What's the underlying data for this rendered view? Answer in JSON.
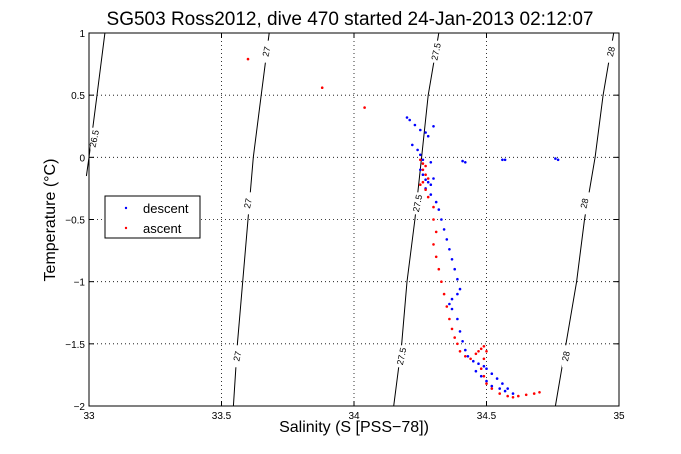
{
  "chart_data": {
    "type": "scatter",
    "title": "SG503 Ross2012, dive 470 started 24-Jan-2013 02:12:07",
    "xlabel": "Salinity (S [PSS−78])",
    "ylabel": "Temperature (°C)",
    "xlim": [
      33,
      35
    ],
    "ylim": [
      -2,
      1
    ],
    "xticks": [
      33,
      33.5,
      34,
      34.5,
      35
    ],
    "yticks": [
      -2,
      -1.5,
      -1,
      -0.5,
      0,
      0.5,
      1
    ],
    "xtick_labels": [
      "33",
      "33.5",
      "34",
      "34.5",
      "35"
    ],
    "ytick_labels": [
      "−2",
      "−1.5",
      "−1",
      "−0.5",
      "0",
      "0.5",
      "1"
    ],
    "grid": "dotted",
    "legend_position": "left-middle",
    "colors": {
      "descent": "#0000ff",
      "ascent": "#ff0000",
      "contour": "#000000"
    },
    "density_contours": [
      {
        "label": "26.5",
        "points": [
          [
            33.06,
            1.0
          ],
          [
            33.03,
            0.5
          ],
          [
            33.0,
            0.0
          ],
          [
            32.99,
            -0.15
          ]
        ],
        "label_positions": [
          [
            33.02,
            0.15
          ]
        ]
      },
      {
        "label": "27",
        "points": [
          [
            33.68,
            1.0
          ],
          [
            33.65,
            0.5
          ],
          [
            33.62,
            0.0
          ],
          [
            33.6,
            -0.5
          ],
          [
            33.58,
            -1.0
          ],
          [
            33.56,
            -1.5
          ],
          [
            33.545,
            -2.0
          ]
        ],
        "label_positions": [
          [
            33.67,
            0.85
          ],
          [
            33.6,
            -0.37
          ],
          [
            33.56,
            -1.6
          ]
        ]
      },
      {
        "label": "27.5",
        "points": [
          [
            34.32,
            1.0
          ],
          [
            34.28,
            0.5
          ],
          [
            34.255,
            0.0
          ],
          [
            34.23,
            -0.5
          ],
          [
            34.2,
            -1.0
          ],
          [
            34.18,
            -1.5
          ],
          [
            34.15,
            -2.0
          ]
        ],
        "label_positions": [
          [
            34.31,
            0.85
          ],
          [
            34.24,
            -0.37
          ],
          [
            34.18,
            -1.6
          ]
        ]
      },
      {
        "label": "28",
        "points": [
          [
            34.98,
            1.0
          ],
          [
            34.94,
            0.5
          ],
          [
            34.91,
            0.0
          ],
          [
            34.87,
            -0.5
          ],
          [
            34.84,
            -1.0
          ],
          [
            34.8,
            -1.5
          ],
          [
            34.76,
            -2.0
          ]
        ],
        "label_positions": [
          [
            34.97,
            0.85
          ],
          [
            34.87,
            -0.37
          ],
          [
            34.8,
            -1.6
          ]
        ]
      }
    ],
    "series": [
      {
        "name": "descent",
        "marker": "dot",
        "points": [
          [
            34.2,
            0.32
          ],
          [
            34.21,
            0.3
          ],
          [
            34.23,
            0.26
          ],
          [
            34.25,
            0.22
          ],
          [
            34.27,
            0.2
          ],
          [
            34.28,
            0.17
          ],
          [
            34.3,
            0.25
          ],
          [
            34.22,
            0.1
          ],
          [
            34.24,
            0.06
          ],
          [
            34.25,
            0.02
          ],
          [
            34.26,
            -0.02
          ],
          [
            34.29,
            -0.04
          ],
          [
            34.41,
            -0.03
          ],
          [
            34.42,
            -0.04
          ],
          [
            34.56,
            -0.02
          ],
          [
            34.57,
            -0.02
          ],
          [
            34.76,
            -0.01
          ],
          [
            34.77,
            -0.02
          ],
          [
            34.25,
            -0.1
          ],
          [
            34.26,
            -0.14
          ],
          [
            34.27,
            -0.18
          ],
          [
            34.28,
            -0.2
          ],
          [
            34.29,
            -0.22
          ],
          [
            34.3,
            -0.17
          ],
          [
            34.27,
            -0.25
          ],
          [
            34.29,
            -0.3
          ],
          [
            34.31,
            -0.36
          ],
          [
            34.32,
            -0.42
          ],
          [
            34.33,
            -0.5
          ],
          [
            34.34,
            -0.58
          ],
          [
            34.35,
            -0.66
          ],
          [
            34.36,
            -0.74
          ],
          [
            34.37,
            -0.82
          ],
          [
            34.38,
            -0.9
          ],
          [
            34.39,
            -0.98
          ],
          [
            34.4,
            -1.06
          ],
          [
            34.39,
            -1.1
          ],
          [
            34.37,
            -1.14
          ],
          [
            34.36,
            -1.18
          ],
          [
            34.37,
            -1.22
          ],
          [
            34.39,
            -1.3
          ],
          [
            34.4,
            -1.4
          ],
          [
            34.41,
            -1.48
          ],
          [
            34.42,
            -1.55
          ],
          [
            34.43,
            -1.6
          ],
          [
            34.45,
            -1.64
          ],
          [
            34.47,
            -1.66
          ],
          [
            34.49,
            -1.68
          ],
          [
            34.5,
            -1.7
          ],
          [
            34.52,
            -1.74
          ],
          [
            34.54,
            -1.78
          ],
          [
            34.56,
            -1.82
          ],
          [
            34.58,
            -1.86
          ],
          [
            34.6,
            -1.9
          ],
          [
            34.46,
            -1.72
          ],
          [
            34.48,
            -1.76
          ],
          [
            34.5,
            -1.8
          ],
          [
            34.52,
            -1.84
          ],
          [
            34.55,
            -1.86
          ],
          [
            34.57,
            -1.88
          ]
        ]
      },
      {
        "name": "ascent",
        "marker": "dot",
        "points": [
          [
            33.6,
            0.79
          ],
          [
            33.88,
            0.56
          ],
          [
            34.04,
            0.4
          ],
          [
            34.25,
            -0.02
          ],
          [
            34.26,
            -0.05
          ],
          [
            34.27,
            -0.07
          ],
          [
            34.26,
            -0.1
          ],
          [
            34.27,
            -0.14
          ],
          [
            34.28,
            -0.17
          ],
          [
            34.26,
            -0.2
          ],
          [
            34.25,
            -0.22
          ],
          [
            34.27,
            -0.26
          ],
          [
            34.28,
            -0.32
          ],
          [
            34.3,
            -0.4
          ],
          [
            34.3,
            -0.5
          ],
          [
            34.31,
            -0.6
          ],
          [
            34.3,
            -0.7
          ],
          [
            34.31,
            -0.8
          ],
          [
            34.32,
            -0.9
          ],
          [
            34.33,
            -1.0
          ],
          [
            34.34,
            -1.1
          ],
          [
            34.35,
            -1.2
          ],
          [
            34.36,
            -1.3
          ],
          [
            34.37,
            -1.38
          ],
          [
            34.38,
            -1.45
          ],
          [
            34.39,
            -1.5
          ],
          [
            34.4,
            -1.56
          ],
          [
            34.42,
            -1.6
          ],
          [
            34.44,
            -1.62
          ],
          [
            34.46,
            -1.58
          ],
          [
            34.47,
            -1.56
          ],
          [
            34.48,
            -1.54
          ],
          [
            34.49,
            -1.52
          ],
          [
            34.5,
            -1.56
          ],
          [
            34.49,
            -1.62
          ],
          [
            34.48,
            -1.7
          ],
          [
            34.49,
            -1.76
          ],
          [
            34.5,
            -1.82
          ],
          [
            34.52,
            -1.86
          ],
          [
            34.55,
            -1.9
          ],
          [
            34.58,
            -1.92
          ],
          [
            34.6,
            -1.93
          ],
          [
            34.62,
            -1.92
          ],
          [
            34.65,
            -1.91
          ],
          [
            34.68,
            -1.9
          ],
          [
            34.7,
            -1.89
          ]
        ]
      }
    ]
  }
}
